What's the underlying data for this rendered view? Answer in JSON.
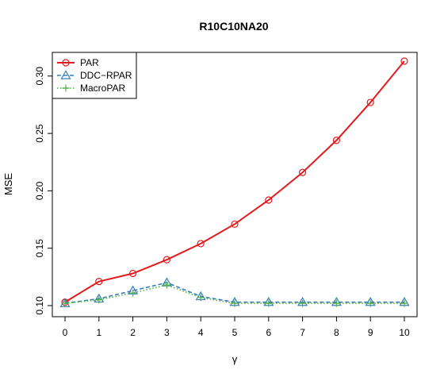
{
  "chart_data": {
    "type": "line",
    "title": "R10C10NA20",
    "xlabel": "γ",
    "ylabel": "MSE",
    "x": [
      0,
      1,
      2,
      3,
      4,
      5,
      6,
      7,
      8,
      9,
      10
    ],
    "xlim": [
      0,
      10
    ],
    "ylim": [
      0.1,
      0.313
    ],
    "x_ticks": [
      "0",
      "1",
      "2",
      "3",
      "4",
      "5",
      "6",
      "7",
      "8",
      "9",
      "10"
    ],
    "y_ticks": [
      "0.10",
      "0.15",
      "0.20",
      "0.25",
      "0.30"
    ],
    "grid": false,
    "legend_position": "top-left",
    "series": [
      {
        "name": "PAR",
        "color": "#e41a1c",
        "marker": "circle",
        "line": "solid",
        "values": [
          0.103,
          0.121,
          0.128,
          0.14,
          0.154,
          0.171,
          0.192,
          0.216,
          0.244,
          0.277,
          0.313
        ]
      },
      {
        "name": "DDC−RPAR",
        "color": "#377eb8",
        "marker": "triangle",
        "line": "dashed",
        "values": [
          0.102,
          0.106,
          0.113,
          0.12,
          0.108,
          0.103,
          0.103,
          0.103,
          0.103,
          0.103,
          0.103
        ]
      },
      {
        "name": "MacroPAR",
        "color": "#4daf4a",
        "marker": "plus",
        "line": "dotted",
        "values": [
          0.102,
          0.105,
          0.111,
          0.118,
          0.107,
          0.102,
          0.102,
          0.102,
          0.102,
          0.102,
          0.102
        ]
      }
    ]
  }
}
